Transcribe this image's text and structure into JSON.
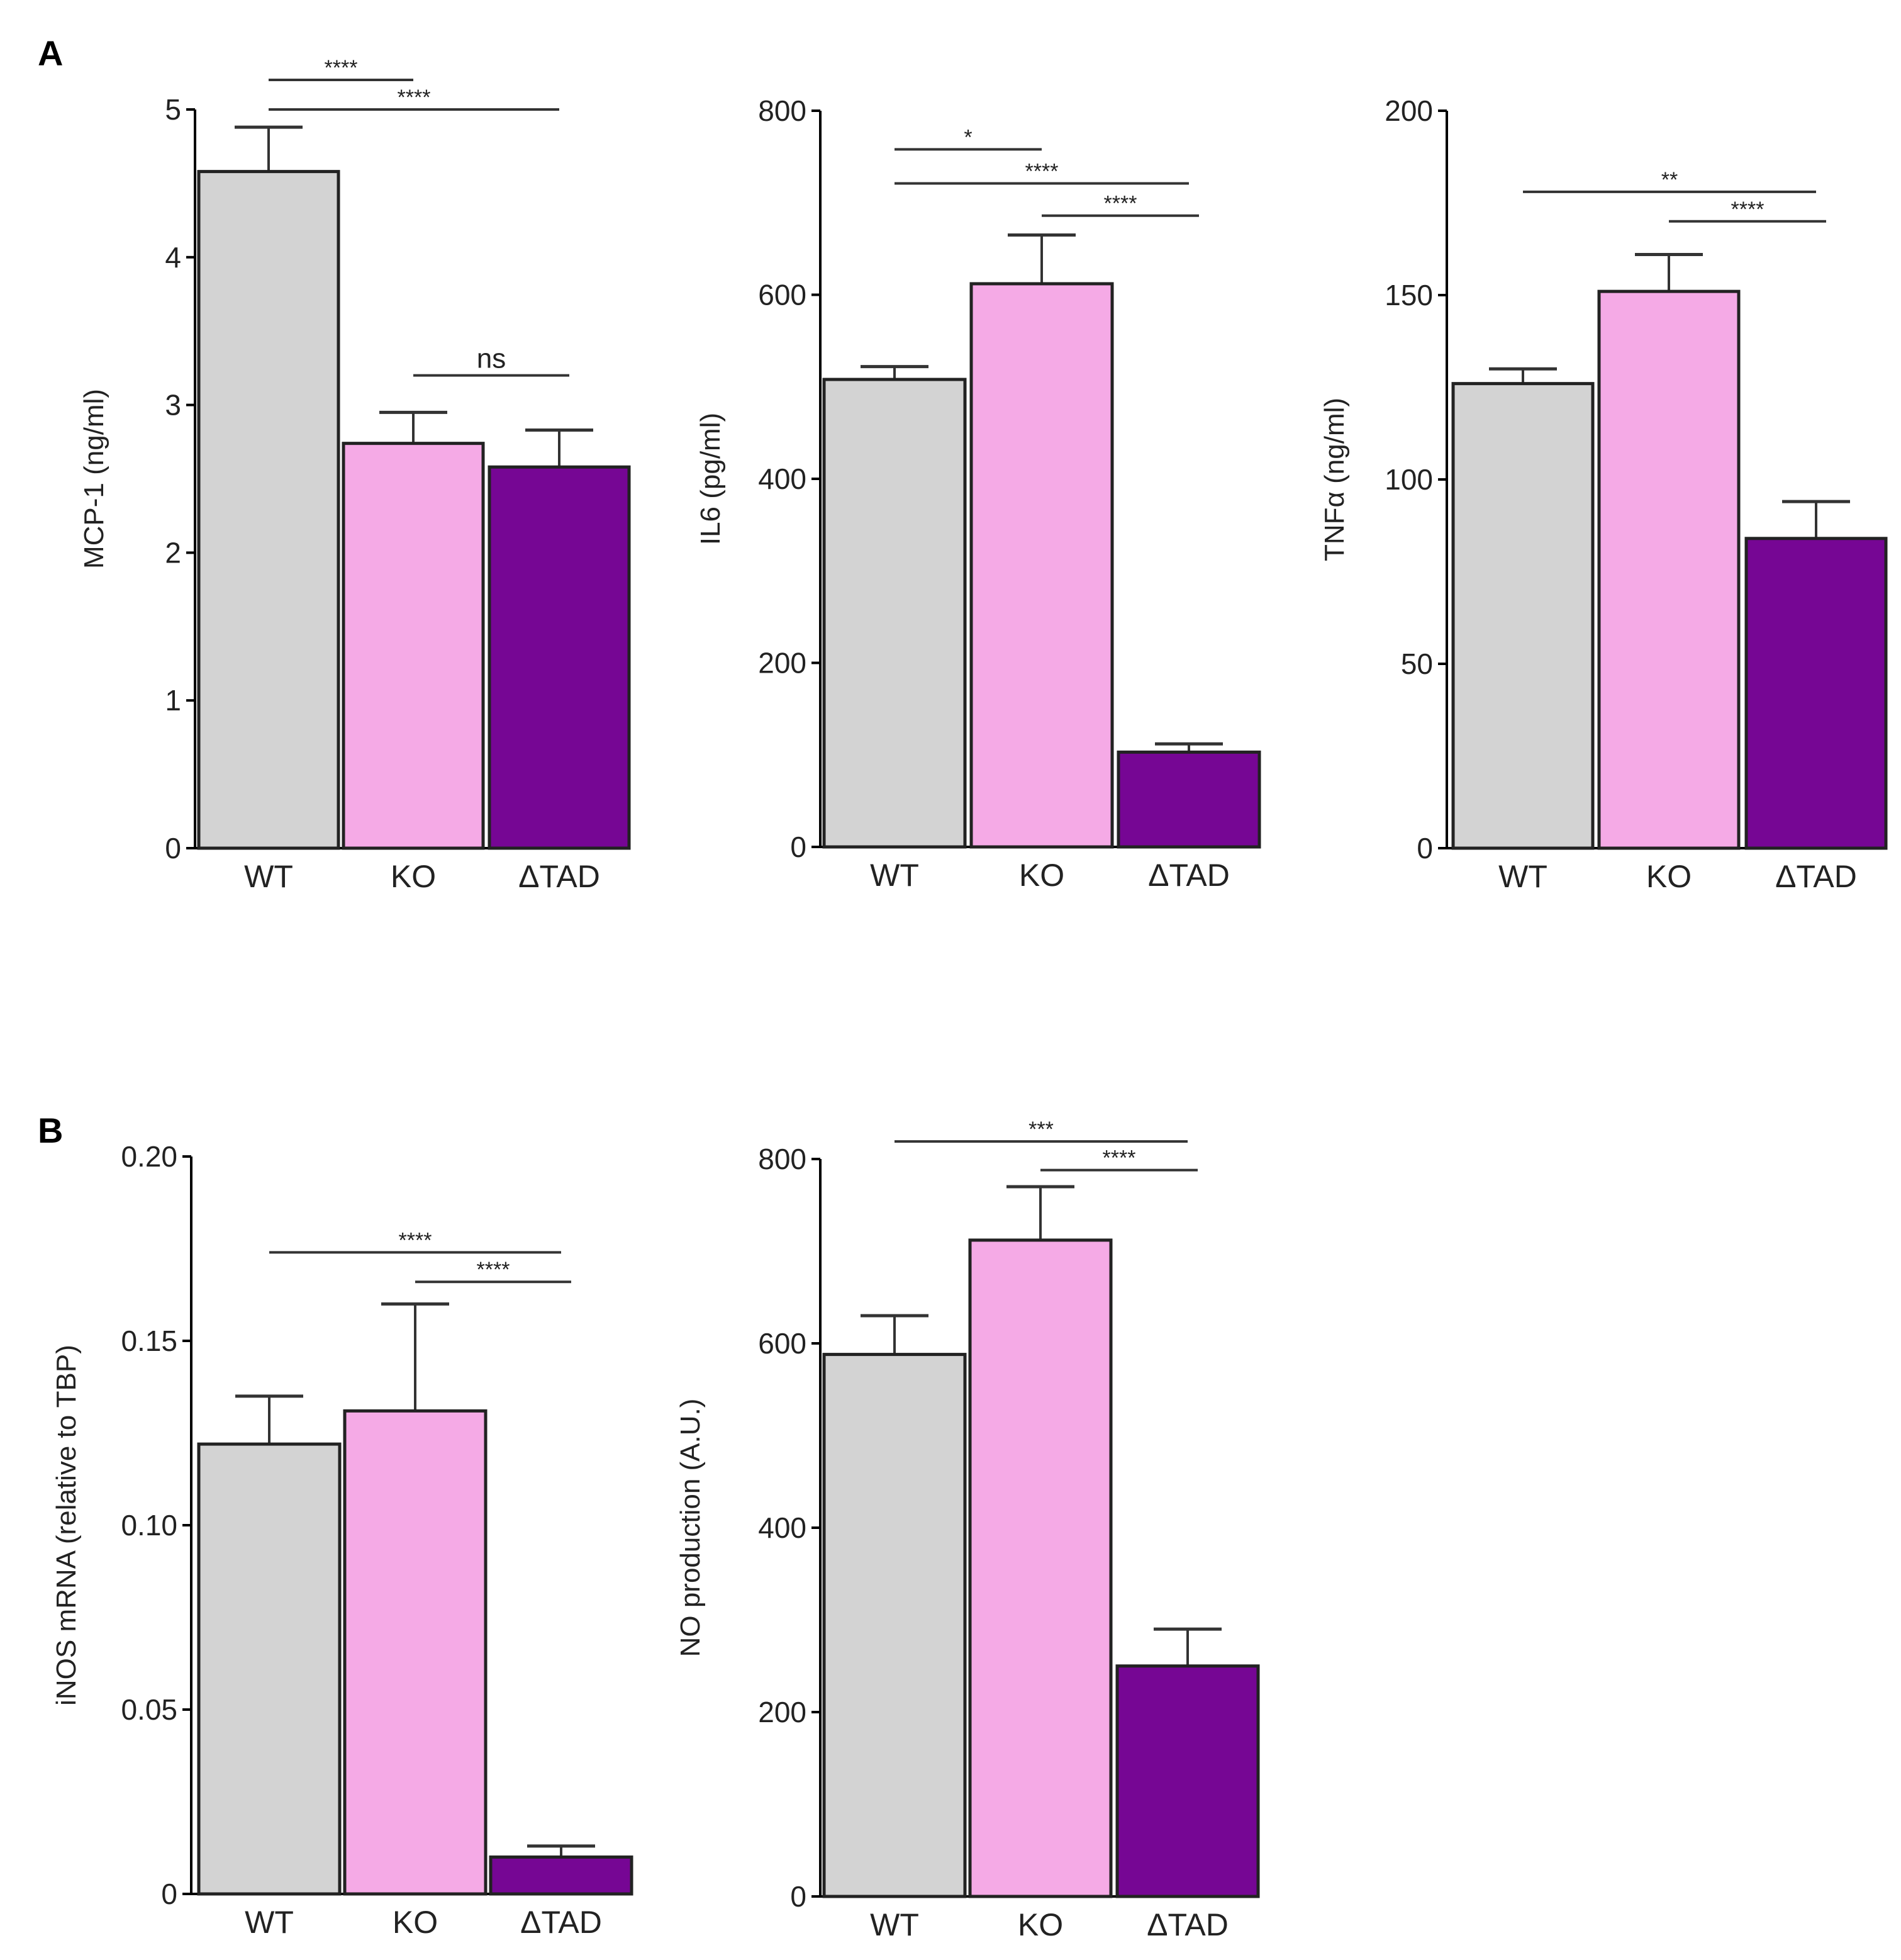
{
  "panels": [
    {
      "label": "A"
    },
    {
      "label": "B"
    }
  ],
  "colors": {
    "WT": "#d3d3d3",
    "KO": "#f5aae6",
    "ΔTAD": "#760694",
    "axis": "#000000"
  },
  "chart_data": [
    {
      "type": "bar",
      "panel": "A",
      "ylabel": "MCP-1  (ng/ml)",
      "categories": [
        "WT",
        "KO",
        "ΔTAD"
      ],
      "values": [
        4.58,
        2.74,
        2.58
      ],
      "errors_upper": [
        4.88,
        2.95,
        2.83
      ],
      "ylim": [
        0,
        5
      ],
      "yticks": [
        0,
        1,
        2,
        3,
        4,
        5
      ],
      "ytick_labels": [
        "0",
        "1",
        "2",
        "3",
        "4",
        "5"
      ],
      "significance": [
        {
          "from": 0,
          "to": 1,
          "y": 5.2,
          "label": "****"
        },
        {
          "from": 0,
          "to": 2,
          "y": 5.0,
          "label": "****"
        },
        {
          "from": 1,
          "to": 2,
          "y": 3.2,
          "label": "ns"
        }
      ]
    },
    {
      "type": "bar",
      "panel": "A",
      "ylabel": "IL6 (pg/ml)",
      "categories": [
        "WT",
        "KO",
        "ΔTAD"
      ],
      "values": [
        508,
        612,
        103
      ],
      "errors_upper": [
        522,
        665,
        112
      ],
      "ylim": [
        0,
        800
      ],
      "yticks": [
        0,
        200,
        400,
        600,
        800
      ],
      "ytick_labels": [
        "0",
        "200",
        "400",
        "600",
        "800"
      ],
      "significance": [
        {
          "from": 0,
          "to": 1,
          "y": 758,
          "label": "*"
        },
        {
          "from": 0,
          "to": 2,
          "y": 721,
          "label": "****"
        },
        {
          "from": 1,
          "to": 2,
          "y": 686,
          "label": "****"
        }
      ]
    },
    {
      "type": "bar",
      "panel": "A",
      "ylabel": "TNFα (ng/ml)",
      "categories": [
        "WT",
        "KO",
        "ΔTAD"
      ],
      "values": [
        126,
        151,
        84
      ],
      "errors_upper": [
        130,
        161,
        94
      ],
      "ylim": [
        0,
        200
      ],
      "yticks": [
        0,
        50,
        100,
        150,
        200
      ],
      "ytick_labels": [
        "0",
        "50",
        "100",
        "150",
        "200"
      ],
      "significance": [
        {
          "from": 0,
          "to": 2,
          "y": 178,
          "label": "**"
        },
        {
          "from": 1,
          "to": 2,
          "y": 170,
          "label": "****"
        }
      ]
    },
    {
      "type": "bar",
      "panel": "B",
      "ylabel": "iNOS mRNA (relative to TBP)",
      "categories": [
        "WT",
        "KO",
        "ΔTAD"
      ],
      "values": [
        0.122,
        0.131,
        0.01
      ],
      "errors_upper": [
        0.135,
        0.16,
        0.013
      ],
      "ylim": [
        0,
        0.2
      ],
      "yticks": [
        0,
        0.05,
        0.1,
        0.15,
        0.2
      ],
      "ytick_labels": [
        "0",
        "0.05",
        "0.10",
        "0.15",
        "0.20"
      ],
      "significance": [
        {
          "from": 0,
          "to": 2,
          "y": 0.174,
          "label": "****"
        },
        {
          "from": 1,
          "to": 2,
          "y": 0.166,
          "label": "****"
        }
      ]
    },
    {
      "type": "bar",
      "panel": "B",
      "ylabel": "NO production (A.U.)",
      "categories": [
        "WT",
        "KO",
        "ΔTAD"
      ],
      "values": [
        588,
        712,
        250
      ],
      "errors_upper": [
        630,
        770,
        290
      ],
      "ylim": [
        0,
        800
      ],
      "yticks": [
        0,
        200,
        400,
        600,
        800
      ],
      "ytick_labels": [
        "0",
        "200",
        "400",
        "600",
        "800"
      ],
      "significance": [
        {
          "from": 0,
          "to": 2,
          "y": 819,
          "label": "***"
        },
        {
          "from": 1,
          "to": 2,
          "y": 788,
          "label": "****"
        }
      ]
    }
  ]
}
